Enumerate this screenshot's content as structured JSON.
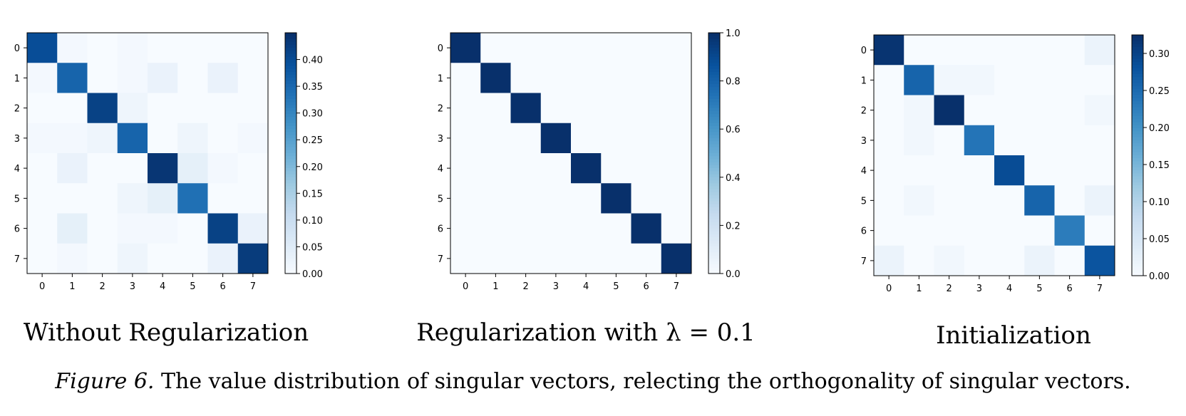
{
  "caption": {
    "label": "Figure 6.",
    "text": "The value distribution of singular vectors, relecting the orthogonality of singular vectors."
  },
  "colormap": {
    "name": "Blues",
    "low": "#f7fbff",
    "high": "#08306b"
  },
  "chart_data": [
    {
      "type": "heatmap",
      "subtitle": "Without Regularization",
      "xticks": [
        "0",
        "1",
        "2",
        "3",
        "4",
        "5",
        "6",
        "7"
      ],
      "yticks": [
        "0",
        "1",
        "2",
        "3",
        "4",
        "5",
        "6",
        "7"
      ],
      "vmin": 0.0,
      "vmax": 0.45,
      "colorbar_ticks": [
        "0.00",
        "0.05",
        "0.10",
        "0.15",
        "0.20",
        "0.25",
        "0.30",
        "0.35",
        "0.40"
      ],
      "values": [
        [
          0.4,
          0.01,
          0.0,
          0.01,
          0.0,
          0.0,
          0.0,
          0.0
        ],
        [
          0.01,
          0.36,
          0.0,
          0.01,
          0.03,
          0.0,
          0.03,
          0.0
        ],
        [
          0.0,
          0.0,
          0.42,
          0.02,
          0.0,
          0.0,
          0.0,
          0.0
        ],
        [
          0.01,
          0.01,
          0.02,
          0.36,
          0.0,
          0.02,
          0.0,
          0.01
        ],
        [
          0.0,
          0.03,
          0.0,
          0.0,
          0.44,
          0.04,
          0.01,
          0.0
        ],
        [
          0.0,
          0.0,
          0.0,
          0.02,
          0.04,
          0.34,
          0.0,
          0.0
        ],
        [
          0.0,
          0.04,
          0.0,
          0.01,
          0.01,
          0.0,
          0.42,
          0.03
        ],
        [
          0.0,
          0.01,
          0.0,
          0.02,
          0.0,
          0.0,
          0.03,
          0.43
        ]
      ]
    },
    {
      "type": "heatmap",
      "subtitle": "Regularization with λ = 0.1",
      "xticks": [
        "0",
        "1",
        "2",
        "3",
        "4",
        "5",
        "6",
        "7"
      ],
      "yticks": [
        "0",
        "1",
        "2",
        "3",
        "4",
        "5",
        "6",
        "7"
      ],
      "vmin": 0.0,
      "vmax": 1.0,
      "colorbar_ticks": [
        "0.0",
        "0.2",
        "0.4",
        "0.6",
        "0.8",
        "1.0"
      ],
      "values": [
        [
          1.0,
          0.0,
          0.0,
          0.0,
          0.0,
          0.0,
          0.0,
          0.0
        ],
        [
          0.0,
          1.0,
          0.0,
          0.0,
          0.0,
          0.0,
          0.0,
          0.0
        ],
        [
          0.0,
          0.0,
          1.0,
          0.0,
          0.0,
          0.0,
          0.0,
          0.0
        ],
        [
          0.0,
          0.0,
          0.0,
          1.0,
          0.0,
          0.0,
          0.0,
          0.0
        ],
        [
          0.0,
          0.0,
          0.0,
          0.0,
          1.0,
          0.0,
          0.0,
          0.0
        ],
        [
          0.0,
          0.0,
          0.0,
          0.0,
          0.0,
          1.0,
          0.0,
          0.0
        ],
        [
          0.0,
          0.0,
          0.0,
          0.0,
          0.0,
          0.0,
          1.0,
          0.0
        ],
        [
          0.0,
          0.0,
          0.0,
          0.0,
          0.0,
          0.0,
          0.0,
          1.0
        ]
      ]
    },
    {
      "type": "heatmap",
      "subtitle": "Initialization",
      "xticks": [
        "0",
        "1",
        "2",
        "3",
        "4",
        "5",
        "6",
        "7"
      ],
      "yticks": [
        "0",
        "1",
        "2",
        "3",
        "4",
        "5",
        "6",
        "7"
      ],
      "vmin": 0.0,
      "vmax": 0.325,
      "colorbar_ticks": [
        "0.00",
        "0.05",
        "0.10",
        "0.15",
        "0.20",
        "0.25",
        "0.30"
      ],
      "values": [
        [
          0.32,
          0.0,
          0.0,
          0.0,
          0.0,
          0.0,
          0.0,
          0.02
        ],
        [
          0.0,
          0.26,
          0.01,
          0.01,
          0.0,
          0.0,
          0.0,
          0.0
        ],
        [
          0.0,
          0.01,
          0.33,
          0.0,
          0.0,
          0.0,
          0.0,
          0.01
        ],
        [
          0.0,
          0.01,
          0.0,
          0.24,
          0.0,
          0.0,
          0.0,
          0.0
        ],
        [
          0.0,
          0.0,
          0.0,
          0.0,
          0.29,
          0.0,
          0.0,
          0.0
        ],
        [
          0.0,
          0.01,
          0.0,
          0.0,
          0.0,
          0.26,
          0.0,
          0.02
        ],
        [
          0.0,
          0.0,
          0.0,
          0.0,
          0.0,
          0.0,
          0.23,
          0.0
        ],
        [
          0.02,
          0.0,
          0.01,
          0.0,
          0.0,
          0.02,
          0.0,
          0.28
        ]
      ]
    }
  ]
}
